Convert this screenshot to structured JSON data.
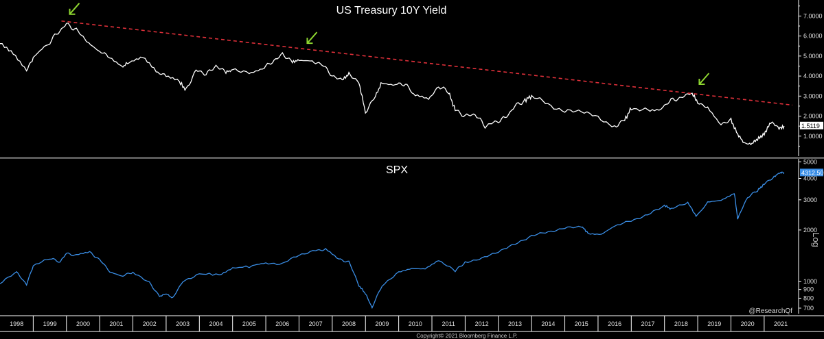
{
  "copyright": "Copyright© 2021 Bloomberg Finance L.P.",
  "handle": "@ResearchQf",
  "colors": {
    "background": "#000000",
    "yield_line": "#ffffff",
    "spx_line": "#3a8ee6",
    "trend": "#e0303a",
    "arrow": "#8ed630",
    "axis": "#ffffff"
  },
  "chart_data": [
    {
      "type": "line",
      "title": "US Treasury 10Y Yield",
      "ylim": [
        0,
        7.8
      ],
      "yticks": [
        "1.0000",
        "2.0000",
        "3.0000",
        "4.0000",
        "5.0000",
        "6.0000",
        "7.0000"
      ],
      "last_value": "1.5119",
      "series": [
        {
          "name": "US Treasury 10Y Yield",
          "x": [
            1998.0,
            1998.4,
            1998.8,
            1999.0,
            1999.4,
            1999.7,
            2000.0,
            2000.3,
            2000.6,
            2001.0,
            2001.3,
            2001.7,
            2001.9,
            2002.3,
            2002.7,
            2003.0,
            2003.4,
            2003.6,
            2003.9,
            2004.2,
            2004.5,
            2004.8,
            2005.0,
            2005.5,
            2005.9,
            2006.2,
            2006.5,
            2006.8,
            2007.0,
            2007.4,
            2007.7,
            2008.0,
            2008.3,
            2008.5,
            2008.8,
            2009.0,
            2009.3,
            2009.5,
            2009.9,
            2010.2,
            2010.5,
            2010.9,
            2011.2,
            2011.5,
            2011.7,
            2012.0,
            2012.3,
            2012.6,
            2012.9,
            2013.2,
            2013.5,
            2013.8,
            2014.0,
            2014.5,
            2015.0,
            2015.5,
            2016.0,
            2016.5,
            2016.8,
            2017.0,
            2017.5,
            2017.9,
            2018.2,
            2018.5,
            2018.8,
            2019.0,
            2019.3,
            2019.7,
            2020.0,
            2020.2,
            2020.4,
            2020.6,
            2020.8,
            2021.0,
            2021.2,
            2021.45,
            2021.6
          ],
          "values": [
            5.7,
            5.2,
            4.3,
            4.9,
            5.5,
            6.1,
            6.6,
            6.3,
            5.8,
            5.2,
            5.0,
            4.5,
            4.7,
            4.9,
            4.2,
            4.0,
            3.7,
            3.3,
            4.3,
            4.1,
            4.5,
            4.2,
            4.3,
            4.2,
            4.4,
            4.7,
            5.1,
            4.7,
            4.8,
            4.7,
            4.6,
            4.0,
            3.8,
            4.1,
            3.7,
            2.2,
            3.0,
            3.7,
            3.6,
            3.6,
            3.0,
            2.8,
            3.5,
            3.2,
            2.3,
            2.0,
            2.1,
            1.5,
            1.7,
            1.9,
            2.5,
            2.8,
            3.0,
            2.6,
            2.2,
            2.3,
            1.9,
            1.5,
            1.8,
            2.4,
            2.3,
            2.4,
            2.8,
            2.9,
            3.2,
            2.7,
            2.4,
            1.6,
            1.8,
            1.1,
            0.65,
            0.6,
            0.85,
            1.1,
            1.7,
            1.4,
            1.51
          ]
        }
      ],
      "trendline": {
        "x": [
          1999.85,
          2021.85
        ],
        "y": [
          6.75,
          2.55
        ]
      },
      "peaks": [
        {
          "x": 1999.85,
          "y": 6.75
        },
        {
          "x": 2007.0,
          "y": 5.3
        },
        {
          "x": 2018.8,
          "y": 3.25
        }
      ]
    },
    {
      "type": "line",
      "title": "SPX",
      "yscale": "log",
      "ylim": [
        650,
        5200
      ],
      "yticks": [
        "700",
        "800",
        "900",
        "1000",
        "2000",
        "3000",
        "4000",
        "5000"
      ],
      "last_value": "4312.50",
      "axis_label": "Log",
      "series": [
        {
          "name": "SPX",
          "x": [
            1998.0,
            1998.5,
            1998.8,
            1999.0,
            1999.5,
            1999.8,
            2000.0,
            2000.3,
            2000.7,
            2001.0,
            2001.3,
            2001.7,
            2002.0,
            2002.5,
            2002.8,
            2003.0,
            2003.2,
            2003.5,
            2004.0,
            2004.6,
            2005.0,
            2005.6,
            2006.0,
            2006.5,
            2007.0,
            2007.5,
            2007.8,
            2008.2,
            2008.5,
            2008.8,
            2009.0,
            2009.2,
            2009.5,
            2010.0,
            2010.4,
            2010.8,
            2011.2,
            2011.7,
            2012.0,
            2012.5,
            2013.0,
            2013.5,
            2014.0,
            2014.5,
            2015.0,
            2015.5,
            2015.7,
            2016.1,
            2016.5,
            2017.0,
            2017.5,
            2018.0,
            2018.2,
            2018.7,
            2018.95,
            2019.3,
            2019.7,
            2020.1,
            2020.2,
            2020.5,
            2020.8,
            2021.0,
            2021.3,
            2021.5,
            2021.6
          ],
          "values": [
            980,
            1130,
            960,
            1230,
            1370,
            1300,
            1460,
            1420,
            1480,
            1340,
            1150,
            1080,
            1140,
            980,
            820,
            850,
            800,
            1000,
            1110,
            1100,
            1200,
            1230,
            1280,
            1270,
            1430,
            1520,
            1540,
            1350,
            1300,
            950,
            850,
            700,
            950,
            1130,
            1200,
            1200,
            1330,
            1150,
            1300,
            1360,
            1500,
            1650,
            1850,
            1950,
            2050,
            2100,
            1920,
            1900,
            2100,
            2270,
            2450,
            2780,
            2650,
            2900,
            2400,
            2900,
            3000,
            3300,
            2300,
            3100,
            3400,
            3700,
            4100,
            4350,
            4312
          ]
        }
      ]
    }
  ],
  "x_axis": {
    "labels": [
      "1998",
      "1999",
      "2000",
      "2001",
      "2002",
      "2003",
      "2004",
      "2005",
      "2006",
      "2007",
      "2008",
      "2009",
      "2010",
      "2011",
      "2012",
      "2013",
      "2014",
      "2015",
      "2016",
      "2017",
      "2018",
      "2019",
      "2020",
      "2021"
    ]
  }
}
